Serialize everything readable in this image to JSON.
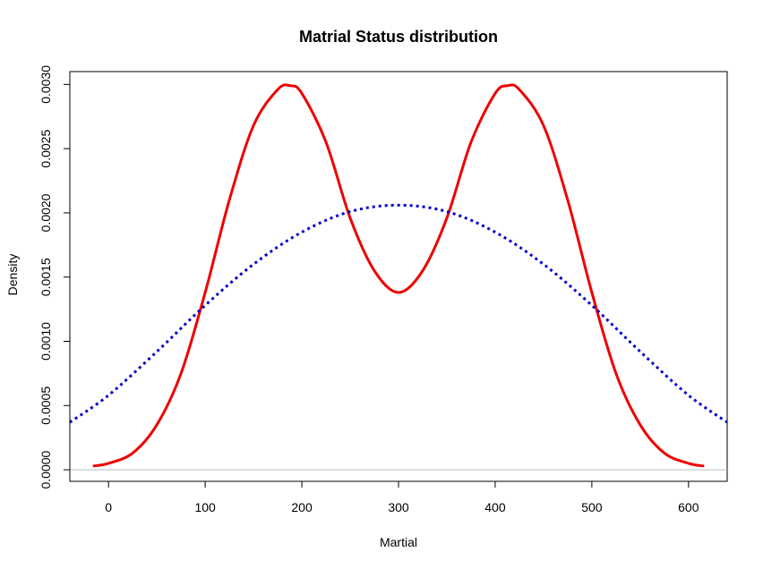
{
  "chart_data": {
    "type": "line",
    "title": "Matrial Status distribution",
    "xlabel": "Martial",
    "ylabel": "Density",
    "xlim": [
      -40,
      640
    ],
    "ylim": [
      -9e-05,
      0.0031
    ],
    "x_ticks": [
      0,
      100,
      200,
      300,
      400,
      500,
      600
    ],
    "x_tick_labels": [
      "0",
      "100",
      "200",
      "300",
      "400",
      "500",
      "600"
    ],
    "y_ticks": [
      0,
      0.0005,
      0.001,
      0.0015,
      0.002,
      0.0025,
      0.003
    ],
    "y_tick_labels": [
      "0.0000",
      "0.0005",
      "0.0010",
      "0.0015",
      "0.0020",
      "0.0025",
      "0.0030"
    ],
    "baseline": 0,
    "baseline_color": "#bebebe",
    "grid": false,
    "series": [
      {
        "style": "solid",
        "color": "#ee0000",
        "x": [
          -15,
          0,
          25,
          50,
          75,
          100,
          125,
          150,
          175,
          188,
          200,
          225,
          250,
          275,
          300,
          325,
          350,
          375,
          400,
          413,
          425,
          450,
          475,
          500,
          525,
          550,
          575,
          600,
          615
        ],
        "y": [
          3e-05,
          5e-05,
          0.00013,
          0.00035,
          0.00075,
          0.00138,
          0.0021,
          0.00268,
          0.00296,
          0.00299,
          0.00293,
          0.00255,
          0.00196,
          0.00155,
          0.00138,
          0.00155,
          0.00196,
          0.00255,
          0.00293,
          0.00299,
          0.00296,
          0.00268,
          0.0021,
          0.00138,
          0.00075,
          0.00035,
          0.00013,
          5e-05,
          3e-05
        ]
      },
      {
        "style": "dotted",
        "color": "#0000cc",
        "x": [
          -40,
          0,
          50,
          100,
          150,
          200,
          250,
          300,
          350,
          400,
          450,
          500,
          550,
          600,
          640
        ],
        "y": [
          0.00037,
          0.00058,
          0.00092,
          0.00128,
          0.0016,
          0.00185,
          0.00201,
          0.00206,
          0.00201,
          0.00185,
          0.0016,
          0.00128,
          0.00092,
          0.00058,
          0.00037
        ]
      }
    ]
  }
}
